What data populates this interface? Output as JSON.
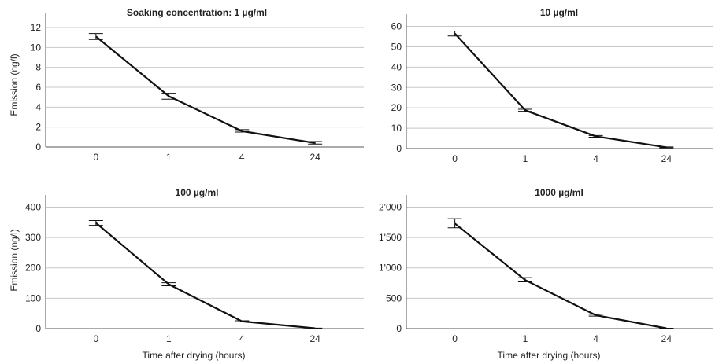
{
  "chart_data": [
    {
      "type": "line",
      "title": "Soaking concentration: 1 µg/ml",
      "ylabel": "Emission (ng/l)",
      "xlabel": "",
      "categories": [
        "0",
        "1",
        "4",
        "24"
      ],
      "values": [
        11.1,
        5.1,
        1.6,
        0.4
      ],
      "error_low": [
        10.8,
        4.8,
        1.5,
        0.3
      ],
      "error_high": [
        11.4,
        5.4,
        1.75,
        0.55
      ],
      "yticks": [
        "0",
        "2",
        "4",
        "6",
        "8",
        "10",
        "12"
      ],
      "ylim": [
        0,
        13.5
      ],
      "grid": true
    },
    {
      "type": "line",
      "title": "10 µg/ml",
      "ylabel": "",
      "xlabel": "",
      "categories": [
        "0",
        "1",
        "4",
        "24"
      ],
      "values": [
        56.5,
        18.8,
        6.0,
        0.6
      ],
      "error_low": [
        55.3,
        18.3,
        5.6,
        0.4
      ],
      "error_high": [
        57.7,
        19.3,
        6.4,
        0.8
      ],
      "yticks": [
        "0",
        "10",
        "20",
        "30",
        "40",
        "50",
        "60"
      ],
      "ylim": [
        0,
        66
      ],
      "grid": true
    },
    {
      "type": "line",
      "title": "100 µg/ml",
      "ylabel": "Emission (ng/l)",
      "xlabel": "Time after drying (hours)",
      "categories": [
        "0",
        "1",
        "4",
        "24"
      ],
      "values": [
        348,
        146,
        24,
        1
      ],
      "error_low": [
        340,
        141,
        22,
        0.5
      ],
      "error_high": [
        356,
        151,
        26,
        1.5
      ],
      "yticks": [
        "0",
        "100",
        "200",
        "300",
        "400"
      ],
      "ylim": [
        0,
        440
      ],
      "grid": true
    },
    {
      "type": "line",
      "title": "1000 µg/ml",
      "ylabel": "",
      "xlabel": "Time after drying (hours)",
      "categories": [
        "0",
        "1",
        "4",
        "24"
      ],
      "values": [
        1730,
        800,
        220,
        5
      ],
      "error_low": [
        1660,
        770,
        205,
        3
      ],
      "error_high": [
        1810,
        840,
        235,
        7
      ],
      "yticks": [
        "0",
        "500",
        "1'000",
        "1'500",
        "2'000"
      ],
      "ytick_values": [
        0,
        500,
        1000,
        1500,
        2000
      ],
      "ylim": [
        0,
        2200
      ],
      "grid": true
    }
  ]
}
